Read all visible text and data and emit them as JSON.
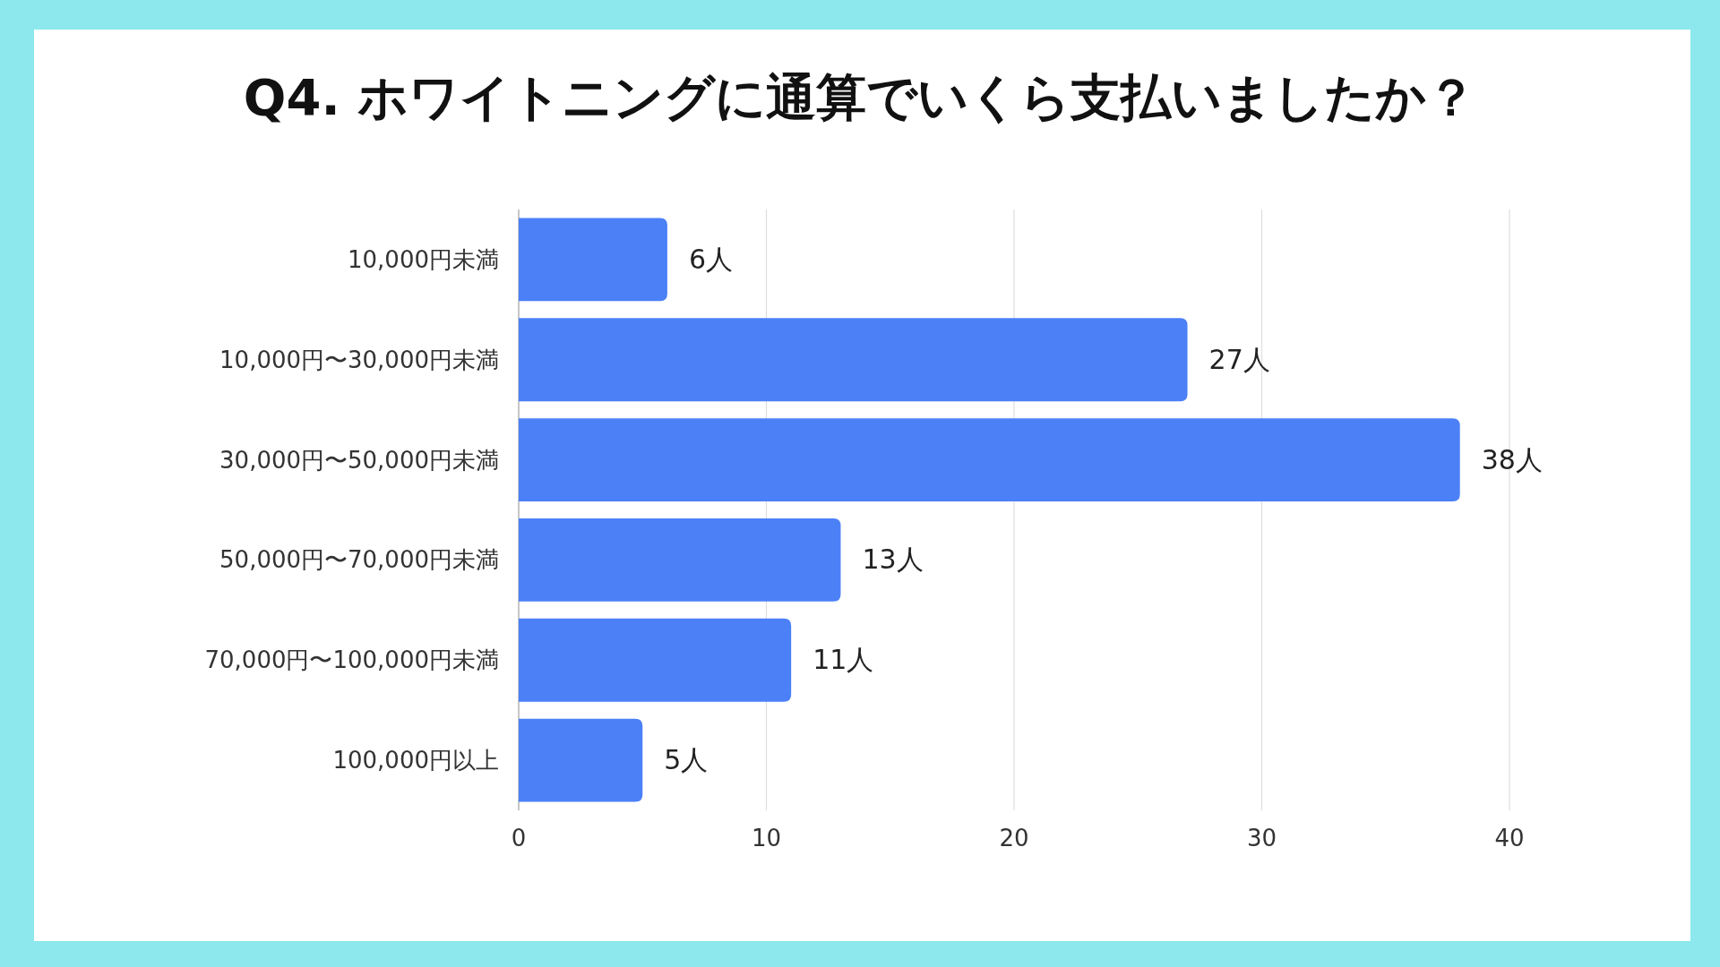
{
  "chart_data": {
    "type": "bar",
    "orientation": "horizontal",
    "title": "Q4. ホワイトニングに通算でいくら支払いましたか？",
    "categories": [
      "10,000円未満",
      "10,000円〜30,000円未満",
      "30,000円〜50,000円未満",
      "50,000円〜70,000円未満",
      "70,000円〜100,000円未満",
      "100,000円以上"
    ],
    "values": [
      6,
      27,
      38,
      13,
      11,
      5
    ],
    "value_labels": [
      "6人",
      "27人",
      "38人",
      "13人",
      "11人",
      "5人"
    ],
    "color": "#4b80f7",
    "xlim": [
      0,
      40
    ],
    "xticks": [
      0,
      10,
      20,
      30,
      40
    ],
    "grid": "x"
  }
}
